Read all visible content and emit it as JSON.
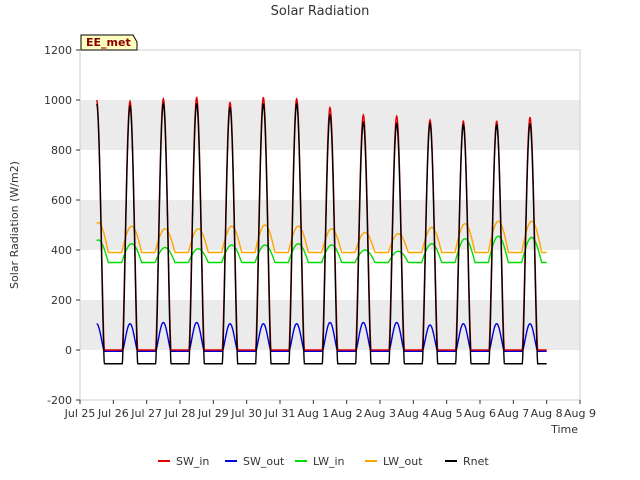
{
  "chart_data": {
    "type": "line",
    "title": "Solar Radiation",
    "xlabel": "Time",
    "ylabel": "Solar Radiation (W/m2)",
    "badge": "EE_met",
    "ylim": [
      -200,
      1200
    ],
    "xlim": [
      "2024-07-25",
      "2024-08-09"
    ],
    "y_ticks": [
      -200,
      0,
      200,
      400,
      600,
      800,
      1000,
      1200
    ],
    "x_ticks": [
      "Jul 25",
      "Jul 26",
      "Jul 27",
      "Jul 28",
      "Jul 29",
      "Jul 30",
      "Jul 31",
      "Aug 1",
      "Aug 2",
      "Aug 3",
      "Aug 4",
      "Aug 5",
      "Aug 6",
      "Aug 7",
      "Aug 8",
      "Aug 9"
    ],
    "grid": "horizontal bands",
    "legend_position": "bottom",
    "days": [
      "Jul 25",
      "Jul 26",
      "Jul 27",
      "Jul 28",
      "Jul 29",
      "Jul 30",
      "Jul 31",
      "Aug 1",
      "Aug 2",
      "Aug 3",
      "Aug 4",
      "Aug 5",
      "Aug 6",
      "Aug 7"
    ],
    "series": [
      {
        "name": "SW_in",
        "color": "#e00000",
        "daily_peak": [
          1000,
          995,
          1005,
          1010,
          990,
          1010,
          1005,
          970,
          940,
          935,
          920,
          915,
          915,
          930
        ],
        "night_value": 0
      },
      {
        "name": "SW_out",
        "color": "#0000dd",
        "daily_peak": [
          105,
          105,
          110,
          110,
          105,
          105,
          105,
          110,
          110,
          110,
          100,
          105,
          105,
          105
        ],
        "night_value": -5
      },
      {
        "name": "LW_in",
        "color": "#00dd00",
        "daily_peak": [
          440,
          425,
          410,
          405,
          420,
          420,
          425,
          420,
          400,
          395,
          425,
          445,
          455,
          450
        ],
        "night_value": 350
      },
      {
        "name": "LW_out",
        "color": "#ffa500",
        "daily_peak": [
          510,
          495,
          485,
          485,
          495,
          500,
          495,
          485,
          470,
          465,
          490,
          505,
          515,
          515
        ],
        "night_value": 390
      },
      {
        "name": "Rnet",
        "color": "#000000",
        "daily_peak": [
          985,
          975,
          985,
          985,
          970,
          985,
          985,
          940,
          910,
          905,
          905,
          900,
          900,
          905
        ],
        "night_value": -55
      }
    ]
  }
}
